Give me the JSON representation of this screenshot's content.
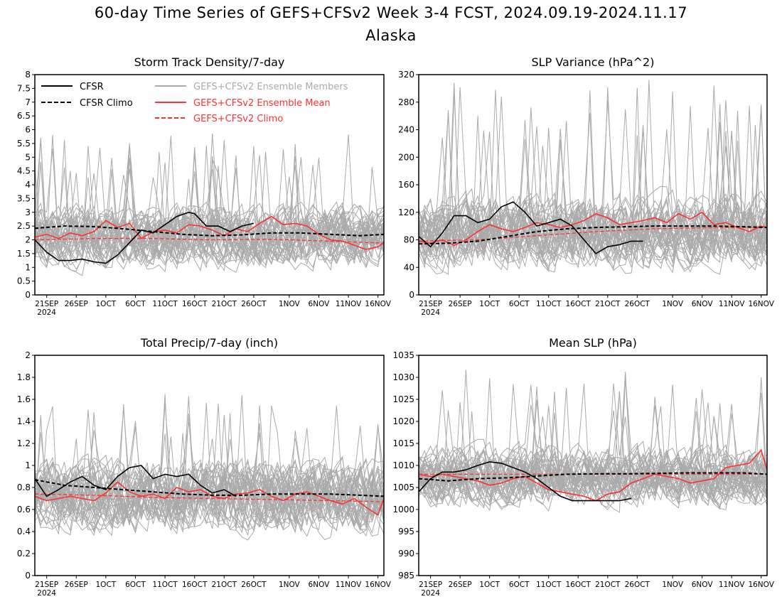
{
  "title": {
    "line1": "60-day Time Series of GEFS+CFSv2 Week 3-4 FCST, 2024.09.19-2024.11.17",
    "line2": "Alaska"
  },
  "colors": {
    "cfsr": "#000000",
    "members": "#aaaaaa",
    "ens_mean": "#ff3030",
    "gefs_climo": "#ff3030"
  },
  "x_ticks": [
    "21SEP",
    "26SEP",
    "1OCT",
    "6OCT",
    "11OCT",
    "16OCT",
    "21OCT",
    "26OCT",
    "1NOV",
    "6NOV",
    "11NOV",
    "16NOV"
  ],
  "x_year": "2024",
  "chart_data": [
    {
      "type": "line",
      "title": "Storm Track Density/7-day",
      "xlim": [
        0,
        59
      ],
      "ylim": [
        0,
        8
      ],
      "yticks": [
        "0",
        "0.5",
        "1",
        "1.5",
        "2",
        "2.5",
        "3",
        "3.5",
        "4",
        "4.5",
        "5",
        "5.5",
        "6",
        "6.5",
        "7",
        "7.5",
        "8"
      ],
      "legend": {
        "placement": "top-left",
        "entries": [
          {
            "label": "CFSR",
            "series": "cfsr"
          },
          {
            "label": "CFSR Climo",
            "series": "cfsr_climo"
          },
          {
            "label": "GEFS+CFSv2 Ensemble Members",
            "series": "members"
          },
          {
            "label": "GEFS+CFSv2 Ensemble Mean",
            "series": "ens_mean"
          },
          {
            "label": "GEFS+CFSv2 Climo",
            "series": "gefs_climo"
          }
        ]
      },
      "members_spread": {
        "center": 2.1,
        "amp": 0.75,
        "max_spike": 5.9,
        "min": 0.1
      },
      "series": {
        "cfsr": {
          "x": [
            0,
            2,
            4,
            6,
            8,
            10,
            12,
            14,
            16,
            18,
            20,
            22,
            24,
            26,
            27,
            29,
            31,
            33,
            35,
            37
          ],
          "y": [
            2.0,
            1.55,
            1.25,
            1.25,
            1.3,
            1.2,
            1.15,
            1.45,
            1.9,
            2.35,
            2.25,
            2.55,
            2.85,
            3.0,
            2.95,
            2.5,
            2.5,
            2.3,
            2.5,
            2.6
          ]
        },
        "cfsr_climo": {
          "x": [
            0,
            5,
            10,
            15,
            20,
            25,
            30,
            35,
            40,
            45,
            50,
            55,
            59
          ],
          "y": [
            2.42,
            2.5,
            2.48,
            2.4,
            2.3,
            2.2,
            2.15,
            2.18,
            2.25,
            2.25,
            2.2,
            2.15,
            2.2
          ]
        },
        "ens_mean": {
          "x": [
            0,
            2,
            4,
            6,
            8,
            10,
            12,
            14,
            16,
            18,
            20,
            22,
            24,
            26,
            28,
            30,
            32,
            34,
            36,
            38,
            40,
            42,
            44,
            46,
            48,
            50,
            52,
            54,
            56,
            58,
            59
          ],
          "y": [
            2.1,
            2.2,
            2.05,
            2.25,
            2.15,
            2.3,
            2.7,
            2.45,
            2.6,
            2.05,
            2.3,
            2.35,
            2.25,
            2.55,
            2.5,
            2.35,
            2.15,
            2.4,
            2.3,
            2.6,
            2.85,
            2.55,
            2.6,
            2.5,
            2.2,
            2.0,
            1.95,
            1.8,
            1.65,
            1.75,
            1.9
          ]
        },
        "gefs_climo": {
          "x": [
            0,
            10,
            20,
            30,
            40,
            50,
            59
          ],
          "y": [
            2.0,
            2.05,
            2.05,
            2.0,
            2.02,
            1.95,
            1.88
          ]
        }
      }
    },
    {
      "type": "line",
      "title": "SLP Variance (hPa^2)",
      "xlim": [
        0,
        59
      ],
      "ylim": [
        0,
        320
      ],
      "yticks": [
        "0",
        "40",
        "80",
        "120",
        "160",
        "200",
        "240",
        "280",
        "320"
      ],
      "members_spread": {
        "center": 92,
        "amp": 35,
        "max_spike": 315,
        "min": 30
      },
      "series": {
        "cfsr": {
          "x": [
            0,
            2,
            4,
            6,
            8,
            10,
            12,
            14,
            16,
            18,
            20,
            22,
            24,
            26,
            28,
            30,
            32,
            34,
            36,
            38
          ],
          "y": [
            85,
            70,
            90,
            115,
            115,
            105,
            110,
            128,
            135,
            120,
            100,
            105,
            110,
            100,
            80,
            60,
            70,
            73,
            78,
            78
          ]
        },
        "cfsr_climo": {
          "x": [
            0,
            5,
            10,
            15,
            20,
            25,
            30,
            35,
            40,
            45,
            50,
            55,
            59
          ],
          "y": [
            74,
            75,
            78,
            85,
            92,
            96,
            98,
            99,
            100,
            100,
            100,
            99,
            98
          ]
        },
        "ens_mean": {
          "x": [
            0,
            2,
            4,
            6,
            8,
            10,
            12,
            14,
            16,
            18,
            20,
            22,
            24,
            26,
            28,
            30,
            32,
            34,
            36,
            38,
            40,
            42,
            44,
            46,
            48,
            50,
            52,
            54,
            56,
            58,
            59
          ],
          "y": [
            78,
            75,
            80,
            72,
            80,
            92,
            102,
            96,
            92,
            98,
            105,
            102,
            98,
            102,
            108,
            118,
            112,
            102,
            105,
            108,
            112,
            105,
            118,
            110,
            120,
            102,
            105,
            98,
            92,
            100,
            98
          ]
        },
        "gefs_climo": {
          "x": [
            0,
            10,
            20,
            30,
            40,
            50,
            59
          ],
          "y": [
            78,
            80,
            86,
            92,
            96,
            98,
            98
          ]
        }
      }
    },
    {
      "type": "line",
      "title": "Total Precip/7-day (inch)",
      "xlim": [
        0,
        59
      ],
      "ylim": [
        0,
        2
      ],
      "yticks": [
        "0",
        "0.2",
        "0.4",
        "0.6",
        "0.8",
        "1",
        "1.2",
        "1.4",
        "1.6",
        "1.8",
        "2"
      ],
      "members_spread": {
        "center": 0.72,
        "amp": 0.22,
        "max_spike": 1.65,
        "min": 0.12
      },
      "series": {
        "cfsr": {
          "x": [
            0,
            2,
            4,
            6,
            8,
            10,
            12,
            14,
            16,
            18,
            20,
            22,
            24,
            26,
            28,
            30,
            32,
            34
          ],
          "y": [
            0.88,
            0.72,
            0.78,
            0.85,
            0.9,
            0.82,
            0.78,
            0.9,
            0.98,
            1.0,
            0.88,
            0.92,
            0.9,
            0.92,
            0.82,
            0.75,
            0.78,
            0.72
          ]
        },
        "cfsr_climo": {
          "x": [
            0,
            5,
            10,
            15,
            20,
            25,
            30,
            35,
            40,
            45,
            50,
            55,
            59
          ],
          "y": [
            0.87,
            0.82,
            0.8,
            0.78,
            0.76,
            0.74,
            0.73,
            0.73,
            0.74,
            0.74,
            0.74,
            0.73,
            0.72
          ]
        },
        "ens_mean": {
          "x": [
            0,
            2,
            4,
            6,
            8,
            10,
            12,
            14,
            16,
            18,
            20,
            22,
            24,
            26,
            28,
            30,
            32,
            34,
            36,
            38,
            40,
            42,
            44,
            46,
            48,
            50,
            52,
            54,
            56,
            58,
            59
          ],
          "y": [
            0.72,
            0.68,
            0.7,
            0.72,
            0.7,
            0.68,
            0.75,
            0.85,
            0.76,
            0.72,
            0.74,
            0.7,
            0.8,
            0.76,
            0.78,
            0.72,
            0.7,
            0.74,
            0.75,
            0.78,
            0.72,
            0.68,
            0.74,
            0.76,
            0.72,
            0.68,
            0.65,
            0.7,
            0.62,
            0.55,
            0.7
          ]
        },
        "gefs_climo": {
          "x": [
            0,
            10,
            20,
            30,
            40,
            50,
            59
          ],
          "y": [
            0.74,
            0.73,
            0.71,
            0.7,
            0.69,
            0.68,
            0.67
          ]
        }
      }
    },
    {
      "type": "line",
      "title": "Mean SLP (hPa)",
      "xlim": [
        0,
        59
      ],
      "ylim": [
        985,
        1035
      ],
      "yticks": [
        "985",
        "990",
        "995",
        "1000",
        "1005",
        "1010",
        "1015",
        "1020",
        "1025",
        "1030",
        "1035"
      ],
      "members_spread": {
        "center": 1007.5,
        "amp": 4.5,
        "max_spike": 1032,
        "min": 990
      },
      "series": {
        "cfsr": {
          "x": [
            0,
            2,
            4,
            6,
            8,
            10,
            12,
            14,
            16,
            18,
            20,
            22,
            24,
            26,
            28,
            30,
            32,
            34,
            36
          ],
          "y": [
            1004,
            1007,
            1008.5,
            1008.5,
            1009,
            1010,
            1010.8,
            1010.5,
            1009.5,
            1008.5,
            1007,
            1005,
            1003,
            1002,
            1002,
            1002,
            1002,
            1002,
            1002.5
          ]
        },
        "cfsr_climo": {
          "x": [
            0,
            5,
            10,
            15,
            20,
            25,
            30,
            35,
            40,
            45,
            50,
            55,
            59
          ],
          "y": [
            1007,
            1006.5,
            1007,
            1007.2,
            1007.6,
            1008,
            1008.1,
            1008.1,
            1008.2,
            1008.3,
            1008.3,
            1008.3,
            1008
          ]
        },
        "ens_mean": {
          "x": [
            0,
            2,
            4,
            6,
            8,
            10,
            12,
            14,
            16,
            18,
            20,
            22,
            24,
            26,
            28,
            30,
            32,
            34,
            36,
            38,
            40,
            42,
            44,
            46,
            48,
            50,
            52,
            54,
            56,
            58,
            59
          ],
          "y": [
            1008,
            1007.5,
            1008,
            1007.5,
            1007,
            1006.5,
            1005.5,
            1006,
            1007,
            1007.5,
            1006,
            1004.5,
            1004,
            1003.5,
            1003,
            1002,
            1003.5,
            1004,
            1006,
            1007,
            1008,
            1007.5,
            1007,
            1006,
            1006.5,
            1007,
            1009.5,
            1010,
            1010.5,
            1013.5,
            1009
          ]
        },
        "gefs_climo": {
          "x": [
            0,
            10,
            20,
            30,
            40,
            50,
            59
          ],
          "y": [
            1008,
            1008,
            1008,
            1008,
            1008,
            1008,
            1008
          ]
        }
      }
    }
  ]
}
